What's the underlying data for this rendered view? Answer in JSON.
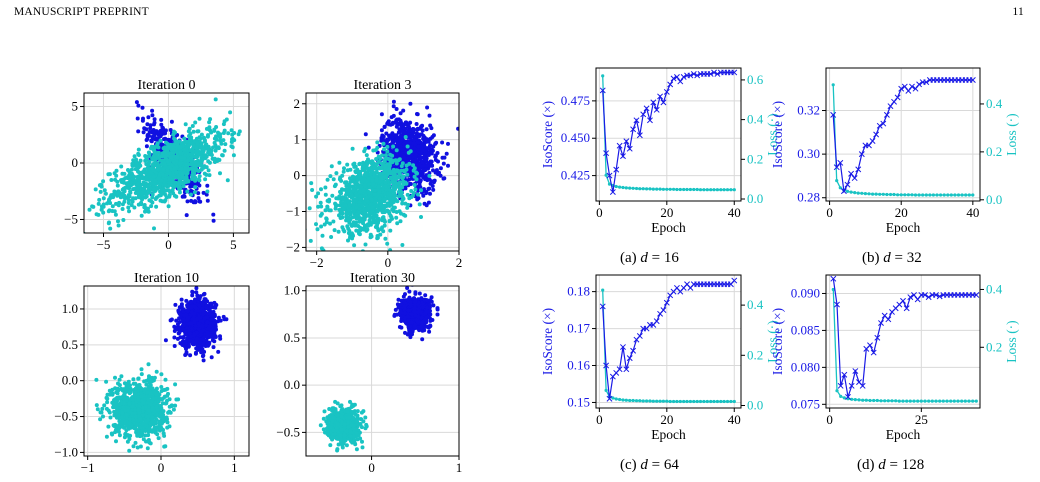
{
  "header": {
    "left": "MANUSCRIPT PREPRINT",
    "page_number": "11"
  },
  "colors": {
    "class_a": "#1010e0",
    "class_b": "#19c3c3",
    "isoscore": "#1a1ae6",
    "loss": "#19c3c3",
    "grid": "#d9d9d9"
  },
  "scatter_panels": [
    {
      "title": "Iteration 0",
      "xlim": [
        -6.5,
        6.2
      ],
      "ylim": [
        -6.2,
        6.2
      ],
      "xticks": [
        -5,
        0,
        5
      ],
      "xtick_labels": [
        "−5",
        "0",
        "5"
      ],
      "yticks": [
        -5,
        0,
        5
      ],
      "ytick_labels": [
        "−5",
        "0",
        "5"
      ],
      "clusters": [
        {
          "class": "a",
          "n": 420,
          "cx": 0.4,
          "cy": 0.3,
          "sx": 1.1,
          "sy": 1.9,
          "rho": -0.75
        },
        {
          "class": "b",
          "n": 1100,
          "cx": 0.0,
          "cy": -0.5,
          "sx": 2.2,
          "sy": 1.7,
          "rho": 0.7
        }
      ]
    },
    {
      "title": "Iteration 3",
      "xlim": [
        -2.3,
        2.0
      ],
      "ylim": [
        -2.1,
        2.3
      ],
      "xticks": [
        -2,
        0,
        2
      ],
      "xtick_labels": [
        "−2",
        "0",
        "2"
      ],
      "yticks": [
        -2,
        -1,
        0,
        1,
        2
      ],
      "ytick_labels": [
        "−2",
        "−1",
        "0",
        "1",
        "2"
      ],
      "clusters": [
        {
          "class": "a",
          "n": 800,
          "cx": 0.6,
          "cy": 0.6,
          "sx": 0.38,
          "sy": 0.5,
          "rho": -0.2
        },
        {
          "class": "b",
          "n": 1100,
          "cx": -0.5,
          "cy": -0.55,
          "sx": 0.55,
          "sy": 0.5,
          "rho": 0.3
        }
      ]
    },
    {
      "title": "Iteration 10",
      "xlim": [
        -1.05,
        1.2
      ],
      "ylim": [
        -1.05,
        1.32
      ],
      "xticks": [
        -1,
        0,
        1
      ],
      "xtick_labels": [
        "−1",
        "0",
        "1"
      ],
      "yticks": [
        -1.0,
        -0.5,
        0.0,
        0.5,
        1.0
      ],
      "ytick_labels": [
        "−1.0",
        "−0.5",
        "0.0",
        "0.5",
        "1.0"
      ],
      "clusters": [
        {
          "class": "a",
          "n": 1000,
          "cx": 0.5,
          "cy": 0.8,
          "sx": 0.12,
          "sy": 0.16,
          "rho": 0.0
        },
        {
          "class": "b",
          "n": 1000,
          "cx": -0.3,
          "cy": -0.4,
          "sx": 0.18,
          "sy": 0.19,
          "rho": 0.0
        }
      ]
    },
    {
      "title": "Iteration 30",
      "xlim": [
        -0.75,
        1.0
      ],
      "ylim": [
        -0.75,
        1.05
      ],
      "xticks": [
        0,
        1
      ],
      "xtick_labels": [
        "0",
        "1"
      ],
      "yticks": [
        -0.5,
        0.0,
        0.5,
        1.0
      ],
      "ytick_labels": [
        "−0.5",
        "0.0",
        "0.5",
        "1.0"
      ],
      "clusters": [
        {
          "class": "a",
          "n": 900,
          "cx": 0.5,
          "cy": 0.76,
          "sx": 0.08,
          "sy": 0.08,
          "rho": 0.0
        },
        {
          "class": "b",
          "n": 900,
          "cx": -0.32,
          "cy": -0.43,
          "sx": 0.08,
          "sy": 0.08,
          "rho": 0.0
        }
      ]
    }
  ],
  "chart_data": [
    {
      "type": "line",
      "caption_prefix": "(a) ",
      "caption_var": "d",
      "caption_suffix": " = 16",
      "xlabel": "Epoch",
      "ylabel_left": "IsoScore (×)",
      "ylabel_right": "Loss (·)",
      "xlim": [
        -1,
        42
      ],
      "xticks": [
        0,
        20,
        40
      ],
      "ylim_left": [
        0.408,
        0.497
      ],
      "yticks_left": [
        0.425,
        0.45,
        0.475
      ],
      "ytick_labels_left": [
        "0.425",
        "0.450",
        "0.475"
      ],
      "ylim_right": [
        -0.01,
        0.66
      ],
      "yticks_right": [
        0.0,
        0.2,
        0.4,
        0.6
      ],
      "ytick_labels_right": [
        "0.0",
        "0.2",
        "0.4",
        "0.6"
      ],
      "isoscore": [
        0.482,
        0.44,
        0.425,
        0.414,
        0.429,
        0.445,
        0.438,
        0.448,
        0.443,
        0.456,
        0.462,
        0.452,
        0.466,
        0.47,
        0.462,
        0.474,
        0.469,
        0.478,
        0.474,
        0.481,
        0.486,
        0.49,
        0.491,
        0.488,
        0.491,
        0.492,
        0.492,
        0.493,
        0.492,
        0.493,
        0.493,
        0.493,
        0.493,
        0.494,
        0.493,
        0.494,
        0.494,
        0.494,
        0.494,
        0.494
      ],
      "loss": [
        0.62,
        0.12,
        0.075,
        0.068,
        0.063,
        0.06,
        0.058,
        0.056,
        0.055,
        0.054,
        0.053,
        0.052,
        0.052,
        0.051,
        0.051,
        0.05,
        0.05,
        0.05,
        0.049,
        0.049,
        0.049,
        0.049,
        0.048,
        0.048,
        0.048,
        0.048,
        0.048,
        0.048,
        0.048,
        0.047,
        0.047,
        0.047,
        0.047,
        0.047,
        0.047,
        0.047,
        0.047,
        0.047,
        0.047,
        0.047
      ]
    },
    {
      "type": "line",
      "caption_prefix": "(b) ",
      "caption_var": "d",
      "caption_suffix": " = 32",
      "xlabel": "Epoch",
      "ylabel_left": "IsoScore (×)",
      "ylabel_right": "Loss (·)",
      "xlim": [
        -1,
        42
      ],
      "xticks": [
        0,
        20,
        40
      ],
      "ylim_left": [
        0.2785,
        0.3395
      ],
      "yticks_left": [
        0.28,
        0.3,
        0.32
      ],
      "ytick_labels_left": [
        "0.28",
        "0.30",
        "0.32"
      ],
      "ylim_right": [
        -0.005,
        0.55
      ],
      "yticks_right": [
        0.0,
        0.2,
        0.4
      ],
      "ytick_labels_right": [
        "0.0",
        "0.2",
        "0.4"
      ],
      "isoscore": [
        0.318,
        0.294,
        0.296,
        0.283,
        0.286,
        0.291,
        0.289,
        0.293,
        0.3,
        0.304,
        0.304,
        0.306,
        0.309,
        0.313,
        0.314,
        0.318,
        0.322,
        0.324,
        0.326,
        0.33,
        0.331,
        0.329,
        0.331,
        0.33,
        0.332,
        0.333,
        0.333,
        0.334,
        0.334,
        0.334,
        0.334,
        0.334,
        0.334,
        0.334,
        0.334,
        0.334,
        0.334,
        0.334,
        0.334,
        0.334
      ],
      "loss": [
        0.48,
        0.08,
        0.05,
        0.04,
        0.035,
        0.032,
        0.03,
        0.028,
        0.027,
        0.026,
        0.025,
        0.024,
        0.024,
        0.023,
        0.023,
        0.022,
        0.022,
        0.022,
        0.021,
        0.021,
        0.021,
        0.021,
        0.021,
        0.02,
        0.02,
        0.02,
        0.02,
        0.02,
        0.02,
        0.02,
        0.02,
        0.02,
        0.02,
        0.02,
        0.02,
        0.02,
        0.02,
        0.02,
        0.02,
        0.02
      ]
    },
    {
      "type": "line",
      "caption_prefix": "(c) ",
      "caption_var": "d",
      "caption_suffix": " = 64",
      "xlabel": "Epoch",
      "ylabel_left": "IsoScore (×)",
      "ylabel_right": "Loss (·)",
      "xlim": [
        -1,
        42
      ],
      "xticks": [
        0,
        20,
        40
      ],
      "ylim_left": [
        0.1485,
        0.1845
      ],
      "yticks_left": [
        0.15,
        0.16,
        0.17,
        0.18
      ],
      "ytick_labels_left": [
        "0.15",
        "0.16",
        "0.17",
        "0.18"
      ],
      "ylim_right": [
        -0.01,
        0.52
      ],
      "yticks_right": [
        0.0,
        0.2,
        0.4
      ],
      "ytick_labels_right": [
        "0.0",
        "0.2",
        "0.4"
      ],
      "isoscore": [
        0.176,
        0.16,
        0.151,
        0.157,
        0.158,
        0.159,
        0.165,
        0.159,
        0.162,
        0.164,
        0.167,
        0.168,
        0.17,
        0.17,
        0.171,
        0.171,
        0.172,
        0.174,
        0.175,
        0.177,
        0.179,
        0.18,
        0.181,
        0.18,
        0.181,
        0.182,
        0.181,
        0.182,
        0.182,
        0.182,
        0.182,
        0.182,
        0.182,
        0.182,
        0.182,
        0.182,
        0.182,
        0.182,
        0.182,
        0.183
      ],
      "loss": [
        0.46,
        0.06,
        0.035,
        0.03,
        0.026,
        0.024,
        0.022,
        0.021,
        0.02,
        0.02,
        0.019,
        0.019,
        0.018,
        0.018,
        0.018,
        0.017,
        0.017,
        0.017,
        0.017,
        0.017,
        0.016,
        0.016,
        0.016,
        0.016,
        0.016,
        0.016,
        0.016,
        0.016,
        0.016,
        0.016,
        0.016,
        0.016,
        0.016,
        0.016,
        0.016,
        0.016,
        0.016,
        0.016,
        0.016,
        0.016
      ]
    },
    {
      "type": "line",
      "caption_prefix": "(d) ",
      "caption_var": "d",
      "caption_suffix": " = 128",
      "xlabel": "Epoch",
      "ylabel_left": "IsoScore (×)",
      "ylabel_right": "Loss (·)",
      "xlim": [
        -1,
        41
      ],
      "xticks": [
        0,
        25
      ],
      "ylim_left": [
        0.0745,
        0.0925
      ],
      "yticks_left": [
        0.075,
        0.08,
        0.085,
        0.09
      ],
      "ytick_labels_left": [
        "0.075",
        "0.080",
        "0.085",
        "0.090"
      ],
      "ylim_right": [
        -0.01,
        0.45
      ],
      "yticks_right": [
        0.2,
        0.4
      ],
      "ytick_labels_right": [
        "0.2",
        "0.4"
      ],
      "isoscore": [
        0.092,
        0.0885,
        0.0775,
        0.079,
        0.076,
        0.0775,
        0.0795,
        0.078,
        0.0775,
        0.0825,
        0.083,
        0.082,
        0.084,
        0.086,
        0.087,
        0.0865,
        0.0875,
        0.088,
        0.0885,
        0.089,
        0.088,
        0.0895,
        0.0898,
        0.0892,
        0.0898,
        0.0898,
        0.0895,
        0.0898,
        0.0898,
        0.0896,
        0.0898,
        0.0898,
        0.0898,
        0.0898,
        0.0898,
        0.0898,
        0.0898,
        0.0898,
        0.0898,
        0.0898
      ],
      "loss": [
        0.4,
        0.05,
        0.03,
        0.025,
        0.022,
        0.02,
        0.019,
        0.018,
        0.017,
        0.017,
        0.016,
        0.016,
        0.016,
        0.015,
        0.015,
        0.015,
        0.015,
        0.015,
        0.014,
        0.014,
        0.014,
        0.014,
        0.014,
        0.014,
        0.014,
        0.014,
        0.014,
        0.014,
        0.014,
        0.014,
        0.014,
        0.014,
        0.014,
        0.014,
        0.014,
        0.014,
        0.014,
        0.014,
        0.014,
        0.014
      ]
    }
  ]
}
